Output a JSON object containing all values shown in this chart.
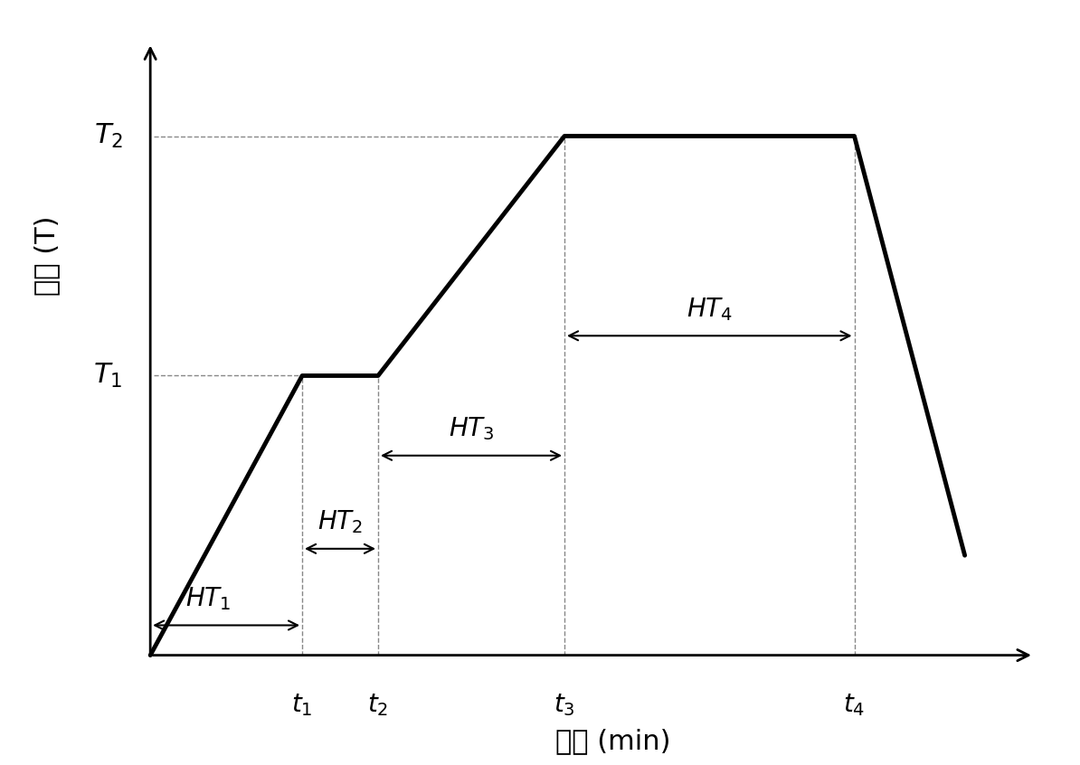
{
  "background_color": "#ffffff",
  "line_color": "#000000",
  "line_width": 3.5,
  "t1": 2.2,
  "t2": 3.3,
  "t3": 6.0,
  "t4": 10.2,
  "t_end": 11.8,
  "T1": 4.2,
  "T2": 7.8,
  "T_start": 0.0,
  "T_end_drop": 1.5,
  "xlabel": "时间 (min)",
  "ylabel_line1": "温度 (T)",
  "dashed_color": "#888888",
  "xlim": [
    -0.3,
    13.0
  ],
  "ylim": [
    -0.5,
    9.5
  ],
  "axis_origin_x": 0.0,
  "axis_origin_y": 0.0,
  "axis_end_x": 12.8,
  "axis_end_y": 9.2
}
